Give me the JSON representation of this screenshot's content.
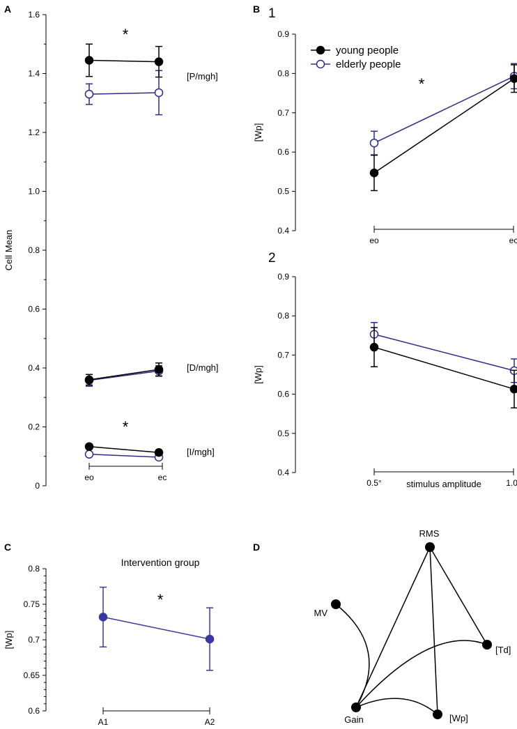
{
  "colors": {
    "young": "#000000",
    "elderly": "#2e2c8a",
    "intervention": "#3a38a0"
  },
  "chart_data": [
    {
      "panel": "A",
      "type": "line",
      "ylabel": "Cell Mean",
      "ylim": [
        0,
        1.6
      ],
      "yticks": [
        "0",
        "0.2",
        "0.4",
        "0.6",
        "0.8",
        "1.0",
        "1.2",
        "1.4",
        "1.6"
      ],
      "categories": [
        "eo",
        "ec"
      ],
      "groups": [
        {
          "label": "[P/mgh]",
          "significance": "*",
          "series": [
            {
              "name": "young people",
              "values": [
                1.445,
                1.44
              ],
              "err": [
                0.055,
                0.052
              ]
            },
            {
              "name": "elderly people",
              "values": [
                1.33,
                1.335
              ],
              "err": [
                0.035,
                0.075
              ]
            }
          ]
        },
        {
          "label": "[D/mgh]",
          "significance": "",
          "series": [
            {
              "name": "young people",
              "values": [
                0.36,
                0.395
              ],
              "err": [
                0.018,
                0.022
              ]
            },
            {
              "name": "elderly people",
              "values": [
                0.358,
                0.39
              ],
              "err": [
                0.02,
                0.018
              ]
            }
          ]
        },
        {
          "label": "[I/mgh]",
          "significance": "*",
          "series": [
            {
              "name": "young people",
              "values": [
                0.133,
                0.113
              ],
              "err": [
                0.008,
                0.008
              ]
            },
            {
              "name": "elderly people",
              "values": [
                0.107,
                0.097
              ],
              "err": [
                0.006,
                0.006
              ]
            }
          ]
        }
      ]
    },
    {
      "panel": "B1",
      "label": "1",
      "type": "line",
      "ylabel": "[Wp]",
      "ylim": [
        0.4,
        0.9
      ],
      "yticks": [
        "0.4",
        "0.5",
        "0.6",
        "0.7",
        "0.8",
        "0.9"
      ],
      "categories": [
        "eo",
        "ec"
      ],
      "significance": "*",
      "legend": [
        "young people",
        "elderly people"
      ],
      "series": [
        {
          "name": "young people",
          "values": [
            0.547,
            0.787
          ],
          "err": [
            0.045,
            0.035
          ]
        },
        {
          "name": "elderly people",
          "values": [
            0.623,
            0.793
          ],
          "err": [
            0.03,
            0.032
          ]
        }
      ]
    },
    {
      "panel": "B2",
      "label": "2",
      "type": "line",
      "ylabel": "[Wp]",
      "xlabel": "stimulus amplitude",
      "ylim": [
        0.4,
        0.9
      ],
      "yticks": [
        "0.4",
        "0.5",
        "0.6",
        "0.7",
        "0.8",
        "0.9"
      ],
      "categories": [
        "0.5°",
        "1.0°"
      ],
      "series": [
        {
          "name": "young people",
          "values": [
            0.72,
            0.613
          ],
          "err": [
            0.05,
            0.048
          ]
        },
        {
          "name": "elderly people",
          "values": [
            0.753,
            0.66
          ],
          "err": [
            0.03,
            0.03
          ]
        }
      ]
    },
    {
      "panel": "C",
      "type": "line",
      "title": "Intervention group",
      "ylabel": "[Wp]",
      "ylim": [
        0.6,
        0.8
      ],
      "yticks": [
        "0.6",
        "0.65",
        "0.7",
        "0.75",
        "0.8"
      ],
      "categories": [
        "A1",
        "A2"
      ],
      "significance": "*",
      "series": [
        {
          "name": "Intervention group",
          "values": [
            0.732,
            0.701
          ],
          "err": [
            0.042,
            0.044
          ]
        }
      ]
    }
  ],
  "network": {
    "panel": "D",
    "nodes": [
      "RMS",
      "MV",
      "[Td]",
      "Gain",
      "[Wp]"
    ],
    "edges": [
      [
        "RMS",
        "Gain"
      ],
      [
        "RMS",
        "[Wp]"
      ],
      [
        "RMS",
        "[Td]"
      ],
      [
        "MV",
        "Gain"
      ],
      [
        "Gain",
        "[Td]"
      ],
      [
        "Gain",
        "[Wp]"
      ]
    ]
  },
  "labels": {
    "A": "A",
    "B": "B",
    "C": "C",
    "D": "D"
  }
}
